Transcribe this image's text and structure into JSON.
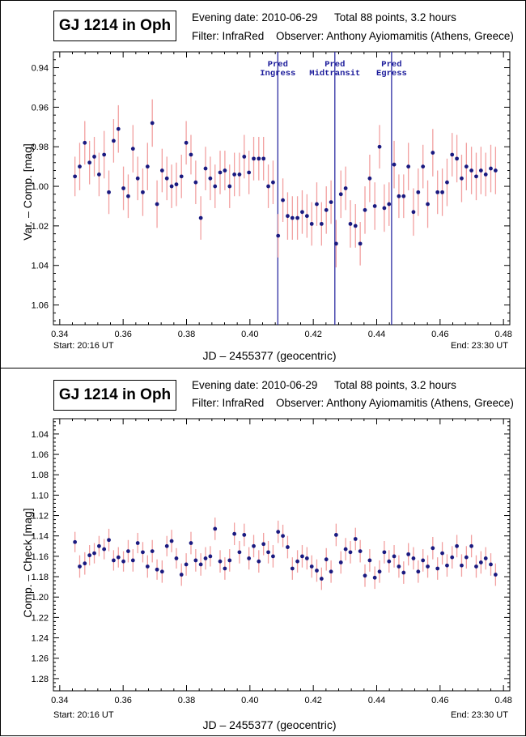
{
  "colors": {
    "marker": "#1a1a80",
    "errorbar": "#f2a0a0",
    "prediction": "#1a1a9a"
  },
  "panels": [
    {
      "title": "GJ 1214 in Oph",
      "evening_date": "Evening date: 2010-06-29",
      "total_points": "Total 88 points, 3.2 hours",
      "filter": "Filter: InfraRed",
      "observer": "Observer: Anthony Ayiomamitis (Athens, Greece)",
      "start": "Start: 20:16 UT",
      "end": "End: 23:30 UT",
      "xlabel": "JD – 2455377  (geocentric)",
      "ylabel": "Var. – Comp. [mag]"
    },
    {
      "title": "GJ 1214 in Oph",
      "evening_date": "Evening date: 2010-06-29",
      "total_points": "Total 88 points, 3.2 hours",
      "filter": "Filter: InfraRed",
      "observer": "Observer: Anthony Ayiomamitis (Athens, Greece)",
      "start": "Start: 20:16 UT",
      "end": "End: 23:30 UT",
      "xlabel": "JD – 2455377  (geocentric)",
      "ylabel": "Comp. – Check [mag]"
    }
  ],
  "chart_data": [
    {
      "type": "scatter",
      "title": "GJ 1214 in Oph",
      "xlabel": "JD – 2455377  (geocentric)",
      "ylabel": "Var. – Comp. [mag]",
      "xlim": [
        0.338,
        0.482
      ],
      "ylim": [
        1.07,
        0.932
      ],
      "y_inverted": true,
      "xticks": [
        0.34,
        0.36,
        0.38,
        0.4,
        0.42,
        0.44,
        0.46,
        0.48
      ],
      "xtick_labels": [
        "0.34",
        "0.36",
        "0.38",
        "0.40",
        "0.42",
        "0.44",
        "0.46",
        "0.48"
      ],
      "yticks": [
        0.94,
        0.96,
        0.98,
        1.0,
        1.02,
        1.04,
        1.06
      ],
      "ytick_labels": [
        "0.94",
        "0.96",
        "0.98",
        "1.00",
        "1.02",
        "1.04",
        "1.06"
      ],
      "predictions": [
        {
          "label1": "Pred",
          "label2": "Ingress",
          "x": 0.4088
        },
        {
          "label1": "Pred",
          "label2": "Midtransit",
          "x": 0.4268
        },
        {
          "label1": "Pred",
          "label2": "Egress",
          "x": 0.4447
        }
      ],
      "x": [
        0.3448,
        0.3463,
        0.3479,
        0.3494,
        0.3509,
        0.3524,
        0.354,
        0.3555,
        0.357,
        0.3585,
        0.3601,
        0.3616,
        0.3631,
        0.3646,
        0.3662,
        0.3677,
        0.3692,
        0.3707,
        0.3723,
        0.3738,
        0.3753,
        0.3768,
        0.3784,
        0.3799,
        0.3814,
        0.3829,
        0.3845,
        0.386,
        0.3875,
        0.389,
        0.3906,
        0.3921,
        0.3936,
        0.3951,
        0.3967,
        0.3982,
        0.3997,
        0.4012,
        0.4028,
        0.4043,
        0.4058,
        0.4073,
        0.4089,
        0.4104,
        0.4119,
        0.4134,
        0.415,
        0.4165,
        0.418,
        0.4195,
        0.4211,
        0.4226,
        0.4241,
        0.4256,
        0.4272,
        0.4287,
        0.4302,
        0.4317,
        0.4333,
        0.4348,
        0.4363,
        0.4378,
        0.4394,
        0.4409,
        0.4424,
        0.4439,
        0.4455,
        0.447,
        0.4485,
        0.45,
        0.4516,
        0.4531,
        0.4546,
        0.4561,
        0.4577,
        0.4592,
        0.4607,
        0.4622,
        0.4638,
        0.4653,
        0.4668,
        0.4683,
        0.4699,
        0.4714,
        0.4729,
        0.4744,
        0.476,
        0.4775
      ],
      "y": [
        0.995,
        0.99,
        0.978,
        0.988,
        0.985,
        0.994,
        0.984,
        1.003,
        0.977,
        0.971,
        1.001,
        1.005,
        0.981,
        0.996,
        1.003,
        0.99,
        0.968,
        1.009,
        0.992,
        0.996,
        1.0,
        0.999,
        0.995,
        0.978,
        0.984,
        0.998,
        1.016,
        0.991,
        0.996,
        1.0,
        0.993,
        0.992,
        1.0,
        0.994,
        0.994,
        0.985,
        0.993,
        0.986,
        0.986,
        0.986,
        1.0,
        0.998,
        1.025,
        1.007,
        1.015,
        1.016,
        1.016,
        1.013,
        1.015,
        1.019,
        1.009,
        1.019,
        1.012,
        1.008,
        1.029,
        1.004,
        1.001,
        1.019,
        1.02,
        1.029,
        1.012,
        0.996,
        1.01,
        0.98,
        1.011,
        1.009,
        0.989,
        1.005,
        1.005,
        0.99,
        1.013,
        1.003,
        0.99,
        1.009,
        0.983,
        1.003,
        1.003,
        0.998,
        0.984,
        0.986,
        0.996,
        0.99,
        0.992,
        0.995,
        0.992,
        0.994,
        0.991,
        0.992
      ],
      "yerr": [
        0.01,
        0.012,
        0.011,
        0.011,
        0.01,
        0.011,
        0.012,
        0.011,
        0.011,
        0.012,
        0.011,
        0.011,
        0.012,
        0.011,
        0.012,
        0.012,
        0.012,
        0.012,
        0.011,
        0.011,
        0.011,
        0.011,
        0.011,
        0.011,
        0.01,
        0.011,
        0.011,
        0.011,
        0.011,
        0.011,
        0.011,
        0.01,
        0.011,
        0.011,
        0.011,
        0.011,
        0.011,
        0.011,
        0.011,
        0.011,
        0.011,
        0.011,
        0.011,
        0.011,
        0.012,
        0.011,
        0.011,
        0.011,
        0.011,
        0.011,
        0.011,
        0.011,
        0.012,
        0.011,
        0.012,
        0.012,
        0.011,
        0.012,
        0.011,
        0.011,
        0.012,
        0.012,
        0.012,
        0.011,
        0.012,
        0.011,
        0.012,
        0.011,
        0.011,
        0.012,
        0.012,
        0.012,
        0.011,
        0.012,
        0.012,
        0.011,
        0.012,
        0.012,
        0.011,
        0.012,
        0.012,
        0.012,
        0.012,
        0.012,
        0.012,
        0.011,
        0.012,
        0.012
      ]
    },
    {
      "type": "scatter",
      "title": "GJ 1214 in Oph",
      "xlabel": "JD – 2455377  (geocentric)",
      "ylabel": "Comp. – Check [mag]",
      "xlim": [
        0.338,
        0.482
      ],
      "ylim": [
        1.292,
        1.025
      ],
      "y_inverted": true,
      "xticks": [
        0.34,
        0.36,
        0.38,
        0.4,
        0.42,
        0.44,
        0.46,
        0.48
      ],
      "xtick_labels": [
        "0.34",
        "0.36",
        "0.38",
        "0.40",
        "0.42",
        "0.44",
        "0.46",
        "0.48"
      ],
      "yticks": [
        1.04,
        1.06,
        1.08,
        1.1,
        1.12,
        1.14,
        1.16,
        1.18,
        1.2,
        1.22,
        1.24,
        1.26,
        1.28
      ],
      "ytick_labels": [
        "1.04",
        "1.06",
        "1.08",
        "1.10",
        "1.12",
        "1.14",
        "1.16",
        "1.18",
        "1.20",
        "1.22",
        "1.24",
        "1.26",
        "1.28"
      ],
      "predictions": [],
      "x": [
        0.3448,
        0.3463,
        0.3479,
        0.3494,
        0.3509,
        0.3524,
        0.354,
        0.3555,
        0.357,
        0.3585,
        0.3601,
        0.3616,
        0.3631,
        0.3646,
        0.3662,
        0.3677,
        0.3692,
        0.3707,
        0.3723,
        0.3738,
        0.3753,
        0.3768,
        0.3784,
        0.3799,
        0.3814,
        0.3829,
        0.3845,
        0.386,
        0.3875,
        0.389,
        0.3906,
        0.3921,
        0.3936,
        0.3951,
        0.3967,
        0.3982,
        0.3997,
        0.4012,
        0.4028,
        0.4043,
        0.4058,
        0.4073,
        0.4089,
        0.4104,
        0.4119,
        0.4134,
        0.415,
        0.4165,
        0.418,
        0.4195,
        0.4211,
        0.4226,
        0.4241,
        0.4256,
        0.4272,
        0.4287,
        0.4302,
        0.4317,
        0.4333,
        0.4348,
        0.4363,
        0.4378,
        0.4394,
        0.4409,
        0.4424,
        0.4439,
        0.4455,
        0.447,
        0.4485,
        0.45,
        0.4516,
        0.4531,
        0.4546,
        0.4561,
        0.4577,
        0.4592,
        0.4607,
        0.4622,
        0.4638,
        0.4653,
        0.4668,
        0.4683,
        0.4699,
        0.4714,
        0.4729,
        0.4744,
        0.476,
        0.4775
      ],
      "y": [
        1.146,
        1.17,
        1.167,
        1.159,
        1.157,
        1.15,
        1.153,
        1.144,
        1.164,
        1.161,
        1.165,
        1.155,
        1.164,
        1.147,
        1.156,
        1.17,
        1.155,
        1.173,
        1.175,
        1.15,
        1.145,
        1.162,
        1.178,
        1.168,
        1.147,
        1.164,
        1.168,
        1.162,
        1.16,
        1.133,
        1.165,
        1.172,
        1.164,
        1.138,
        1.156,
        1.139,
        1.162,
        1.15,
        1.165,
        1.148,
        1.156,
        1.16,
        1.136,
        1.14,
        1.151,
        1.172,
        1.165,
        1.16,
        1.162,
        1.17,
        1.174,
        1.182,
        1.163,
        1.175,
        1.139,
        1.166,
        1.153,
        1.156,
        1.143,
        1.155,
        1.179,
        1.164,
        1.181,
        1.175,
        1.156,
        1.165,
        1.16,
        1.17,
        1.176,
        1.158,
        1.162,
        1.175,
        1.164,
        1.17,
        1.152,
        1.172,
        1.157,
        1.169,
        1.161,
        1.15,
        1.169,
        1.161,
        1.15,
        1.17,
        1.166,
        1.162,
        1.168,
        1.178
      ],
      "yerr": [
        0.01,
        0.011,
        0.011,
        0.01,
        0.01,
        0.01,
        0.01,
        0.011,
        0.01,
        0.01,
        0.01,
        0.011,
        0.011,
        0.01,
        0.01,
        0.011,
        0.011,
        0.01,
        0.011,
        0.01,
        0.011,
        0.01,
        0.011,
        0.011,
        0.011,
        0.011,
        0.011,
        0.011,
        0.01,
        0.011,
        0.011,
        0.011,
        0.011,
        0.011,
        0.011,
        0.011,
        0.011,
        0.011,
        0.011,
        0.011,
        0.011,
        0.011,
        0.011,
        0.011,
        0.011,
        0.011,
        0.011,
        0.011,
        0.011,
        0.011,
        0.011,
        0.011,
        0.011,
        0.011,
        0.011,
        0.011,
        0.011,
        0.011,
        0.011,
        0.011,
        0.011,
        0.011,
        0.011,
        0.011,
        0.011,
        0.011,
        0.011,
        0.011,
        0.011,
        0.011,
        0.011,
        0.011,
        0.011,
        0.011,
        0.011,
        0.011,
        0.011,
        0.011,
        0.011,
        0.011,
        0.011,
        0.011,
        0.011,
        0.011,
        0.011,
        0.011,
        0.011,
        0.011
      ]
    }
  ]
}
